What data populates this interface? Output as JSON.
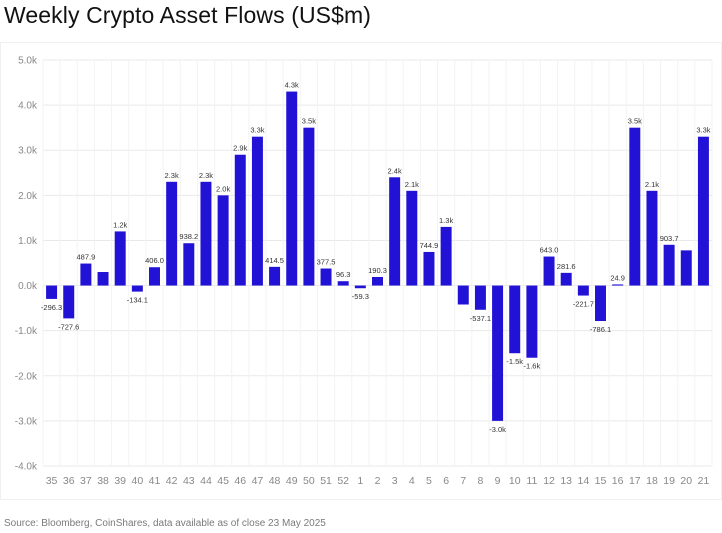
{
  "title": "Weekly Crypto Asset Flows (US$m)",
  "source": "Source: Bloomberg, CoinShares, data available as of close 23 May 2025",
  "colors": {
    "bar": "#2112d6",
    "grid": "#e9e9e9",
    "axis_text": "#888888",
    "label_text": "#333333"
  },
  "chart_data": {
    "type": "bar",
    "title": "Weekly Crypto Asset Flows (US$m)",
    "xlabel": "",
    "ylabel": "",
    "ylim": [
      -4000,
      5000
    ],
    "y_ticks": [
      5000,
      4000,
      3000,
      2000,
      1000,
      0,
      -1000,
      -2000,
      -3000,
      -4000
    ],
    "y_tick_labels": [
      "5.0k",
      "4.0k",
      "3.0k",
      "2.0k",
      "1.0k",
      "0.0k",
      "-1.0k",
      "-2.0k",
      "-3.0k",
      "-4.0k"
    ],
    "grid": true,
    "categories": [
      "35",
      "36",
      "37",
      "38",
      "39",
      "40",
      "41",
      "42",
      "43",
      "44",
      "45",
      "46",
      "47",
      "48",
      "49",
      "50",
      "51",
      "52",
      "1",
      "2",
      "3",
      "4",
      "5",
      "6",
      "7",
      "8",
      "9",
      "10",
      "11",
      "12",
      "13",
      "14",
      "15",
      "16",
      "17",
      "18",
      "19",
      "20",
      "21"
    ],
    "values": [
      -296.3,
      -727.6,
      487.9,
      300,
      1200,
      -134.1,
      406.0,
      2300,
      938.2,
      2300,
      2000,
      2900,
      3300,
      414.5,
      4300,
      3500,
      377.5,
      96.3,
      -59.3,
      190.3,
      2400,
      2100,
      744.9,
      1300,
      -420,
      -537.1,
      -3000,
      -1500,
      -1600,
      643.0,
      281.6,
      -221.7,
      -786.1,
      24.9,
      3500,
      2100,
      903.7,
      780,
      3300
    ],
    "data_labels": [
      "-296.3",
      "-727.6",
      "487.9",
      "",
      "1.2k",
      "-134.1",
      "406.0",
      "2.3k",
      "938.2",
      "2.3k",
      "2.0k",
      "2.9k",
      "3.3k",
      "414.5",
      "4.3k",
      "3.5k",
      "377.5",
      "96.3",
      "-59.3",
      "190.3",
      "2.4k",
      "2.1k",
      "744.9",
      "1.3k",
      "",
      "-537.1",
      "-3.0k",
      "-1.5k",
      "-1.6k",
      "643.0",
      "281.6",
      "-221.7",
      "-786.1",
      "24.9",
      "3.5k",
      "2.1k",
      "903.7",
      "",
      "3.3k"
    ]
  }
}
